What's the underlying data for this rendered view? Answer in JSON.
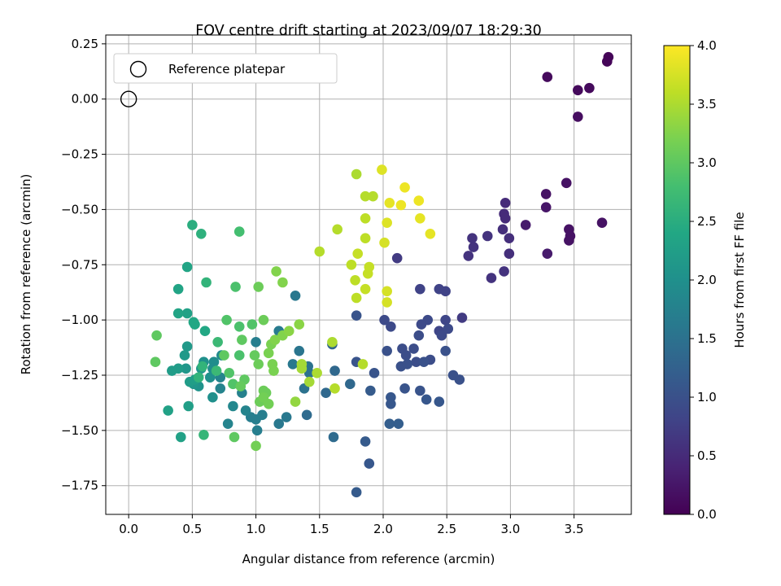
{
  "chart_data": {
    "type": "scatter",
    "title": "FOV centre drift starting at 2023/09/07 18:29:30",
    "xlabel": "Angular distance from reference (arcmin)",
    "ylabel": "Rotation from reference (arcmin)",
    "xlim": [
      -0.18,
      3.95
    ],
    "ylim": [
      -1.88,
      0.29
    ],
    "xticks": [
      "0.0",
      "0.5",
      "1.0",
      "1.5",
      "2.0",
      "2.5",
      "3.0",
      "3.5"
    ],
    "yticks": [
      "0.25",
      "0.00",
      "−0.25",
      "−0.50",
      "−0.75",
      "−1.00",
      "−1.25",
      "−1.50",
      "−1.75"
    ],
    "grid": true,
    "legend": {
      "label": "Reference platepar",
      "placement": "top-left"
    },
    "reference_point": {
      "x": 0.0,
      "y": 0.0
    },
    "colorbar": {
      "label": "Hours from first FF file",
      "colormap": "viridis",
      "range": [
        0.0,
        4.0
      ],
      "ticks": [
        "0.0",
        "0.5",
        "1.0",
        "1.5",
        "2.0",
        "2.5",
        "3.0",
        "3.5",
        "4.0"
      ]
    },
    "points": [
      [
        3.77,
        0.19,
        0.05
      ],
      [
        3.76,
        0.17,
        0.05
      ],
      [
        3.29,
        0.1,
        0.1
      ],
      [
        3.53,
        0.04,
        0.1
      ],
      [
        3.62,
        0.05,
        0.1
      ],
      [
        3.53,
        -0.08,
        0.15
      ],
      [
        3.44,
        -0.38,
        0.2
      ],
      [
        3.28,
        -0.43,
        0.2
      ],
      [
        3.28,
        -0.49,
        0.25
      ],
      [
        3.72,
        -0.56,
        0.2
      ],
      [
        3.46,
        -0.59,
        0.2
      ],
      [
        3.47,
        -0.62,
        0.2
      ],
      [
        3.46,
        -0.64,
        0.2
      ],
      [
        3.12,
        -0.57,
        0.3
      ],
      [
        3.29,
        -0.7,
        0.3
      ],
      [
        2.96,
        -0.47,
        0.5
      ],
      [
        2.95,
        -0.52,
        0.5
      ],
      [
        2.96,
        -0.54,
        0.5
      ],
      [
        2.94,
        -0.59,
        0.55
      ],
      [
        2.99,
        -0.63,
        0.55
      ],
      [
        2.99,
        -0.7,
        0.55
      ],
      [
        2.82,
        -0.62,
        0.6
      ],
      [
        2.7,
        -0.63,
        0.6
      ],
      [
        2.71,
        -0.67,
        0.6
      ],
      [
        2.67,
        -0.71,
        0.6
      ],
      [
        2.95,
        -0.78,
        0.6
      ],
      [
        2.85,
        -0.81,
        0.6
      ],
      [
        2.11,
        -0.72,
        0.7
      ],
      [
        2.62,
        -0.99,
        0.7
      ],
      [
        2.29,
        -0.86,
        0.8
      ],
      [
        2.44,
        -0.86,
        0.8
      ],
      [
        2.49,
        -0.87,
        0.8
      ],
      [
        2.49,
        -1.0,
        0.85
      ],
      [
        2.44,
        -1.05,
        0.85
      ],
      [
        2.35,
        -1.0,
        0.9
      ],
      [
        2.3,
        -1.02,
        0.9
      ],
      [
        2.01,
        -1.0,
        0.9
      ],
      [
        2.06,
        -1.03,
        0.9
      ],
      [
        2.46,
        -1.07,
        0.9
      ],
      [
        2.51,
        -1.04,
        0.9
      ],
      [
        2.28,
        -1.07,
        0.95
      ],
      [
        2.24,
        -1.13,
        0.95
      ],
      [
        2.15,
        -1.13,
        0.95
      ],
      [
        2.18,
        -1.16,
        0.95
      ],
      [
        2.26,
        -1.19,
        0.95
      ],
      [
        2.37,
        -1.18,
        0.95
      ],
      [
        2.32,
        -1.19,
        1.0
      ],
      [
        2.14,
        -1.21,
        1.0
      ],
      [
        2.19,
        -1.2,
        1.0
      ],
      [
        2.49,
        -1.14,
        1.0
      ],
      [
        2.55,
        -1.25,
        1.0
      ],
      [
        2.6,
        -1.27,
        1.0
      ],
      [
        2.03,
        -1.14,
        1.0
      ],
      [
        1.93,
        -1.24,
        1.05
      ],
      [
        1.79,
        -0.98,
        1.05
      ],
      [
        1.79,
        -1.19,
        1.05
      ],
      [
        2.17,
        -1.31,
        1.05
      ],
      [
        2.29,
        -1.32,
        1.05
      ],
      [
        2.06,
        -1.35,
        1.1
      ],
      [
        2.06,
        -1.38,
        1.1
      ],
      [
        2.34,
        -1.36,
        1.1
      ],
      [
        2.44,
        -1.37,
        1.1
      ],
      [
        1.9,
        -1.32,
        1.15
      ],
      [
        1.86,
        -1.55,
        1.15
      ],
      [
        1.89,
        -1.65,
        1.1
      ],
      [
        1.79,
        -1.78,
        1.15
      ],
      [
        2.05,
        -1.47,
        1.2
      ],
      [
        2.12,
        -1.47,
        1.2
      ],
      [
        1.6,
        -1.11,
        1.3
      ],
      [
        1.62,
        -1.23,
        1.35
      ],
      [
        1.74,
        -1.29,
        1.35
      ],
      [
        1.55,
        -1.33,
        1.35
      ],
      [
        1.61,
        -1.53,
        1.4
      ],
      [
        1.4,
        -1.43,
        1.4
      ],
      [
        1.41,
        -1.21,
        1.5
      ],
      [
        1.42,
        -1.24,
        1.5
      ],
      [
        1.38,
        -1.31,
        1.5
      ],
      [
        1.34,
        -1.14,
        1.55
      ],
      [
        1.31,
        -0.89,
        1.6
      ],
      [
        1.29,
        -1.2,
        1.6
      ],
      [
        1.24,
        -1.44,
        1.6
      ],
      [
        1.18,
        -1.47,
        1.6
      ],
      [
        1.18,
        -1.05,
        1.65
      ],
      [
        1.0,
        -1.1,
        1.7
      ],
      [
        0.96,
        -1.44,
        1.7
      ],
      [
        1.0,
        -1.45,
        1.7
      ],
      [
        1.05,
        -1.43,
        1.7
      ],
      [
        1.01,
        -1.5,
        1.7
      ],
      [
        0.89,
        -1.33,
        1.75
      ],
      [
        0.92,
        -1.41,
        1.8
      ],
      [
        0.78,
        -1.47,
        1.8
      ],
      [
        0.72,
        -1.26,
        1.8
      ],
      [
        0.72,
        -1.31,
        1.8
      ],
      [
        0.82,
        -1.39,
        1.85
      ],
      [
        0.73,
        -1.16,
        1.9
      ],
      [
        0.67,
        -1.19,
        1.95
      ],
      [
        0.66,
        -1.22,
        1.95
      ],
      [
        0.59,
        -1.19,
        2.0
      ],
      [
        0.64,
        -1.26,
        2.0
      ],
      [
        0.66,
        -1.35,
        2.0
      ],
      [
        0.55,
        -1.3,
        2.05
      ],
      [
        0.51,
        -1.29,
        2.1
      ],
      [
        0.57,
        -1.22,
        2.1
      ],
      [
        0.45,
        -1.22,
        2.1
      ],
      [
        0.46,
        -1.12,
        2.15
      ],
      [
        0.44,
        -1.16,
        2.15
      ],
      [
        0.39,
        -1.22,
        2.2
      ],
      [
        0.34,
        -1.23,
        2.2
      ],
      [
        0.48,
        -1.28,
        2.2
      ],
      [
        0.52,
        -1.27,
        2.25
      ],
      [
        0.47,
        -1.39,
        2.25
      ],
      [
        0.31,
        -1.41,
        2.3
      ],
      [
        0.41,
        -1.53,
        2.3
      ],
      [
        0.46,
        -0.97,
        2.3
      ],
      [
        0.46,
        -0.76,
        2.35
      ],
      [
        0.39,
        -0.86,
        2.35
      ],
      [
        0.39,
        -0.97,
        2.35
      ],
      [
        0.51,
        -1.01,
        2.4
      ],
      [
        0.52,
        -1.02,
        2.4
      ],
      [
        0.6,
        -1.05,
        2.4
      ],
      [
        0.5,
        -0.57,
        2.5
      ],
      [
        0.57,
        -0.61,
        2.55
      ],
      [
        0.61,
        -0.83,
        2.6
      ],
      [
        0.58,
        -1.21,
        2.6
      ],
      [
        0.55,
        -1.26,
        2.6
      ],
      [
        0.59,
        -1.52,
        2.65
      ],
      [
        0.7,
        -1.1,
        2.7
      ],
      [
        0.69,
        -1.23,
        2.7
      ],
      [
        0.87,
        -0.6,
        2.8
      ],
      [
        0.84,
        -0.85,
        2.85
      ],
      [
        0.87,
        -1.03,
        2.85
      ],
      [
        0.87,
        -1.16,
        2.85
      ],
      [
        0.97,
        -1.02,
        2.9
      ],
      [
        0.77,
        -1.0,
        2.9
      ],
      [
        0.79,
        -1.24,
        2.9
      ],
      [
        0.82,
        -1.29,
        2.9
      ],
      [
        0.89,
        -1.09,
        3.0
      ],
      [
        0.91,
        -1.27,
        3.0
      ],
      [
        0.83,
        -1.53,
        3.0
      ],
      [
        0.22,
        -1.07,
        3.0
      ],
      [
        0.21,
        -1.19,
        3.0
      ],
      [
        0.75,
        -1.16,
        3.0
      ],
      [
        0.88,
        -1.3,
        3.05
      ],
      [
        0.99,
        -1.16,
        3.05
      ],
      [
        1.02,
        -0.85,
        3.1
      ],
      [
        1.06,
        -1.0,
        3.1
      ],
      [
        1.02,
        -1.2,
        3.1
      ],
      [
        1.06,
        -1.32,
        3.1
      ],
      [
        1.08,
        -1.33,
        3.1
      ],
      [
        1.03,
        -1.37,
        3.1
      ],
      [
        1.0,
        -1.57,
        3.15
      ],
      [
        1.06,
        -1.35,
        3.15
      ],
      [
        1.1,
        -1.38,
        3.15
      ],
      [
        1.12,
        -1.11,
        3.2
      ],
      [
        1.1,
        -1.15,
        3.2
      ],
      [
        1.13,
        -1.2,
        3.2
      ],
      [
        1.14,
        -1.23,
        3.2
      ],
      [
        1.15,
        -1.09,
        3.25
      ],
      [
        1.16,
        -0.78,
        3.25
      ],
      [
        1.21,
        -0.83,
        3.25
      ],
      [
        1.21,
        -1.07,
        3.25
      ],
      [
        1.26,
        -1.05,
        3.3
      ],
      [
        1.34,
        -1.02,
        3.3
      ],
      [
        1.31,
        -1.37,
        3.35
      ],
      [
        1.36,
        -1.2,
        3.45
      ],
      [
        1.36,
        -1.22,
        3.45
      ],
      [
        1.42,
        -1.28,
        3.45
      ],
      [
        1.48,
        -1.24,
        3.5
      ],
      [
        1.6,
        -1.1,
        3.5
      ],
      [
        1.62,
        -1.31,
        3.55
      ],
      [
        1.5,
        -0.69,
        3.55
      ],
      [
        1.64,
        -0.59,
        3.55
      ],
      [
        1.79,
        -0.34,
        3.5
      ],
      [
        1.86,
        -0.44,
        3.55
      ],
      [
        1.92,
        -0.44,
        3.55
      ],
      [
        1.86,
        -0.54,
        3.6
      ],
      [
        1.86,
        -0.63,
        3.6
      ],
      [
        1.75,
        -0.75,
        3.6
      ],
      [
        1.78,
        -0.82,
        3.6
      ],
      [
        1.86,
        -0.86,
        3.65
      ],
      [
        1.8,
        -0.7,
        3.65
      ],
      [
        1.89,
        -0.76,
        3.65
      ],
      [
        1.88,
        -0.79,
        3.65
      ],
      [
        1.79,
        -0.9,
        3.6
      ],
      [
        1.84,
        -1.2,
        3.55
      ],
      [
        1.99,
        -0.32,
        3.8
      ],
      [
        2.03,
        -0.56,
        3.8
      ],
      [
        2.05,
        -0.47,
        3.85
      ],
      [
        2.14,
        -0.48,
        3.9
      ],
      [
        2.17,
        -0.4,
        3.9
      ],
      [
        2.28,
        -0.46,
        3.9
      ],
      [
        2.29,
        -0.54,
        3.85
      ],
      [
        2.37,
        -0.61,
        3.85
      ],
      [
        2.01,
        -0.65,
        3.75
      ],
      [
        2.03,
        -0.87,
        3.75
      ],
      [
        2.03,
        -0.92,
        3.75
      ]
    ]
  }
}
